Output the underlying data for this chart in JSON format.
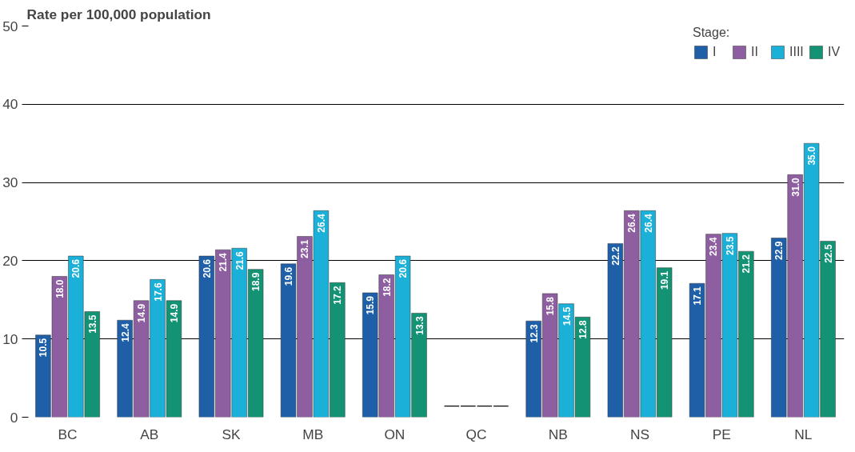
{
  "chart_data": {
    "type": "bar",
    "ylabel": "Rate per 100,000 population",
    "legend_title": "Stage:",
    "categories": [
      "BC",
      "AB",
      "SK",
      "MB",
      "ON",
      "QC",
      "NB",
      "NS",
      "PE",
      "NL"
    ],
    "series": [
      {
        "name": "I",
        "color": "#1f5fa8",
        "values": [
          10.5,
          12.4,
          20.6,
          19.6,
          15.9,
          null,
          12.3,
          22.2,
          17.1,
          22.9
        ],
        "value_labels": [
          "10.5",
          "12.4",
          "20.6",
          "19.6",
          "15.9",
          "—",
          "12.3",
          "22.2",
          "17.1",
          "22.9"
        ]
      },
      {
        "name": "II",
        "color": "#8e5fa0",
        "values": [
          18.0,
          14.9,
          21.4,
          23.1,
          18.2,
          null,
          15.8,
          26.4,
          23.4,
          31.0
        ],
        "value_labels": [
          "18.0",
          "14.9",
          "21.4",
          "23.1",
          "18.2",
          "—",
          "15.8",
          "26.4",
          "23.4",
          "31.0"
        ]
      },
      {
        "name": "IIII",
        "color": "#1ab0d8",
        "values": [
          20.6,
          17.6,
          21.6,
          26.4,
          20.6,
          null,
          14.5,
          26.4,
          23.5,
          35.0
        ],
        "value_labels": [
          "20.6",
          "17.6",
          "21.6",
          "26.4",
          "20.6",
          "—",
          "14.5",
          "26.4",
          "23.5",
          "35.0"
        ]
      },
      {
        "name": "IV",
        "color": "#149374",
        "values": [
          13.5,
          14.9,
          18.9,
          17.2,
          13.3,
          null,
          12.8,
          19.1,
          21.2,
          22.5
        ],
        "value_labels": [
          "13.5",
          "14.9",
          "18.9",
          "17.2",
          "13.3",
          "—",
          "12.8",
          "19.1",
          "21.2",
          "22.5"
        ]
      }
    ],
    "ylim": [
      0,
      50
    ],
    "yticks": [
      0,
      10,
      20,
      30,
      40,
      50
    ],
    "grid": "y",
    "legend": "top right"
  }
}
